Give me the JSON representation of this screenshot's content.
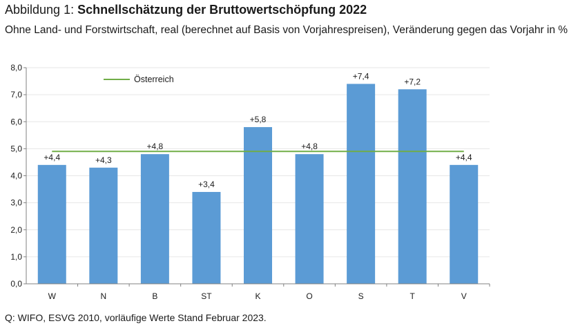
{
  "header": {
    "title_prefix": "Abbildung 1: ",
    "title_main": "Schnellschätzung der Bruttowertschöpfung 2022",
    "subtitle": "Ohne Land- und Forstwirtschaft, real (berechnet auf Basis von Vorjahrespreisen), Veränderung gegen das Vorjahr in %"
  },
  "footer": {
    "source": "Q: WIFO, ESVG 2010, vorläufige Werte Stand Februar 2023."
  },
  "colors": {
    "bar": "#5b9bd5",
    "reference_line": "#70ad47",
    "gridline": "#e6e6e6",
    "axis": "#808080"
  },
  "chart_data": {
    "type": "bar",
    "categories": [
      "W",
      "N",
      "B",
      "ST",
      "K",
      "O",
      "S",
      "T",
      "V"
    ],
    "values": [
      4.4,
      4.3,
      4.8,
      3.4,
      5.8,
      4.8,
      7.4,
      7.2,
      4.4
    ],
    "data_labels": [
      "+4,4",
      "+4,3",
      "+4,8",
      "+3,4",
      "+5,8",
      "+4,8",
      "+7,4",
      "+7,2",
      "+4,4"
    ],
    "reference_line": {
      "name": "Österreich",
      "value": 4.9
    },
    "ylim": [
      0,
      8
    ],
    "yticks": [
      0,
      1,
      2,
      3,
      4,
      5,
      6,
      7,
      8
    ],
    "ytick_labels": [
      "0,0",
      "1,0",
      "2,0",
      "3,0",
      "4,0",
      "5,0",
      "6,0",
      "7,0",
      "8,0"
    ],
    "legend_position": "top-left",
    "grid": true,
    "xlabel": "",
    "ylabel": ""
  }
}
